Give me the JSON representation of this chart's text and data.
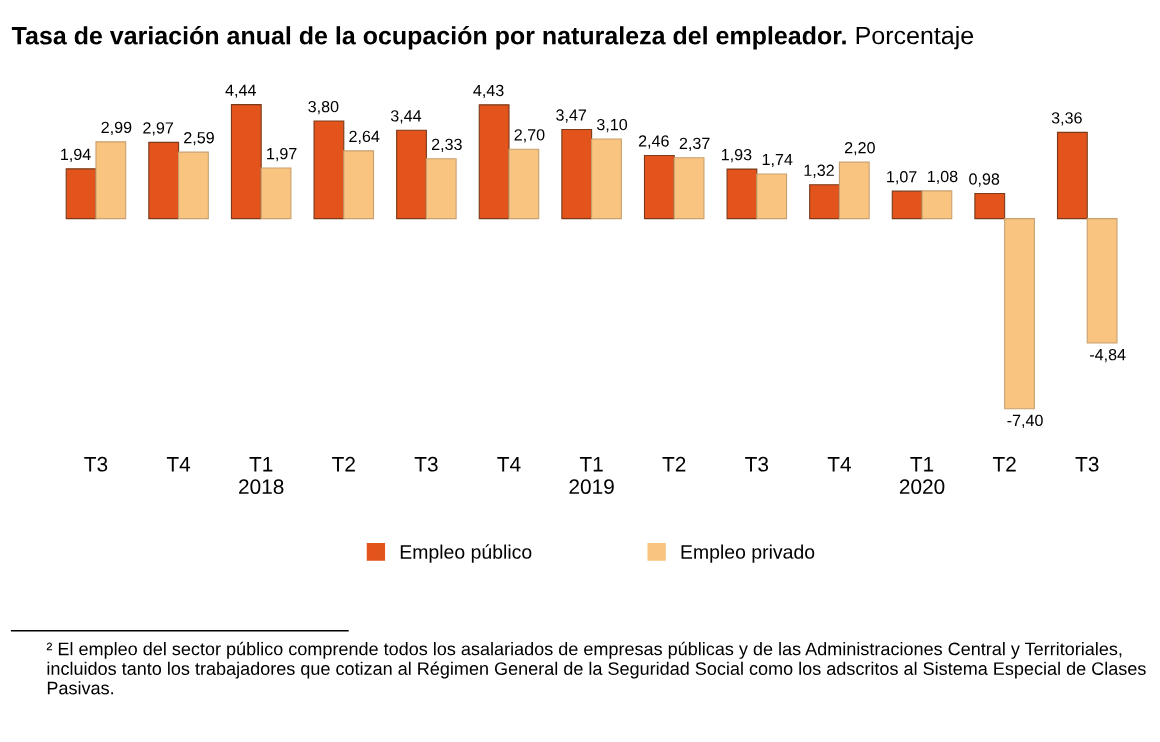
{
  "chart_data": {
    "type": "bar",
    "title": "Tasa de variación anual de la ocupación por naturaleza del empleador.",
    "subtitle": "Porcentaje",
    "categories": [
      "T3",
      "T4",
      "T1\n2018",
      "T2",
      "T3",
      "T4",
      "T1\n2019",
      "T2",
      "T3",
      "T4",
      "T1\n2020",
      "T2",
      "T3"
    ],
    "series": [
      {
        "name": "Empleo público",
        "color": "#e2541b",
        "values": [
          1.94,
          2.97,
          4.44,
          3.8,
          3.44,
          4.43,
          3.47,
          2.46,
          1.93,
          1.32,
          1.07,
          0.98,
          3.36
        ],
        "value_labels": [
          "1,94",
          "2,97",
          "4,44",
          "3,80",
          "3,44",
          "4,43",
          "3,47",
          "2,46",
          "1,93",
          "1,32",
          "1,07",
          "0,98",
          "3,36"
        ]
      },
      {
        "name": "Empleo privado",
        "color": "#f8c47f",
        "values": [
          2.99,
          2.59,
          1.97,
          2.64,
          2.33,
          2.7,
          3.1,
          2.37,
          1.74,
          2.2,
          1.08,
          -7.4,
          -4.84
        ],
        "value_labels": [
          "2,99",
          "2,59",
          "1,97",
          "2,64",
          "2,33",
          "2,70",
          "3,10",
          "2,37",
          "1,74",
          "2,20",
          "1,08",
          "-7,40",
          "-4,84"
        ]
      }
    ],
    "legend": "bottom",
    "annotations": [
      "² El empleo del sector público comprende todos los asalariados de empresas públicas y de las Administraciones Central y Territoriales, incluidos tanto los trabajadores que cotizan al Régimen General de la Seguridad Social como los adscritos al Sistema Especial de Clases Pasivas."
    ]
  }
}
